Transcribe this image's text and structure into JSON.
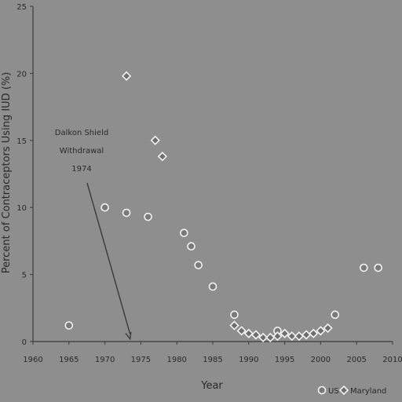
{
  "chart_data": {
    "type": "scatter",
    "xlabel": "Year",
    "ylabel": "Percent of Contraceptors Using IUD (%)",
    "xlim": [
      1960,
      2010
    ],
    "ylim": [
      0,
      25
    ],
    "xticks": [
      "1960",
      "1965",
      "1970",
      "1975",
      "1980",
      "1985",
      "1990",
      "1995",
      "2000",
      "2005",
      "2010"
    ],
    "yticks": [
      "0",
      "5",
      "10",
      "15",
      "20",
      "25"
    ],
    "grid": false,
    "legend": "bottom-right",
    "annotation": {
      "lines": [
        "Dalkon Shield",
        "Withdrawal",
        "1974"
      ],
      "arrow_to": [
        1973.5,
        0.2
      ]
    },
    "series": [
      {
        "name": "US",
        "marker": "circle",
        "points": [
          [
            1965,
            1.2
          ],
          [
            1970,
            10.0
          ],
          [
            1973,
            9.6
          ],
          [
            1976,
            9.3
          ],
          [
            1981,
            8.1
          ],
          [
            1982,
            7.1
          ],
          [
            1983,
            5.7
          ],
          [
            1985,
            4.1
          ],
          [
            1988,
            2.0
          ],
          [
            1994,
            0.8
          ],
          [
            2002,
            2.0
          ],
          [
            2006,
            5.5
          ],
          [
            2008,
            5.5
          ]
        ]
      },
      {
        "name": "Maryland",
        "marker": "diamond",
        "points": [
          [
            1973,
            19.8
          ],
          [
            1977,
            15.0
          ],
          [
            1978,
            13.8
          ],
          [
            1988,
            1.2
          ],
          [
            1989,
            0.8
          ],
          [
            1990,
            0.6
          ],
          [
            1991,
            0.5
          ],
          [
            1992,
            0.3
          ],
          [
            1993,
            0.3
          ],
          [
            1994,
            0.4
          ],
          [
            1995,
            0.6
          ],
          [
            1996,
            0.4
          ],
          [
            1997,
            0.4
          ],
          [
            1998,
            0.5
          ],
          [
            1999,
            0.6
          ],
          [
            2000,
            0.8
          ],
          [
            2001,
            1.0
          ]
        ]
      }
    ]
  }
}
